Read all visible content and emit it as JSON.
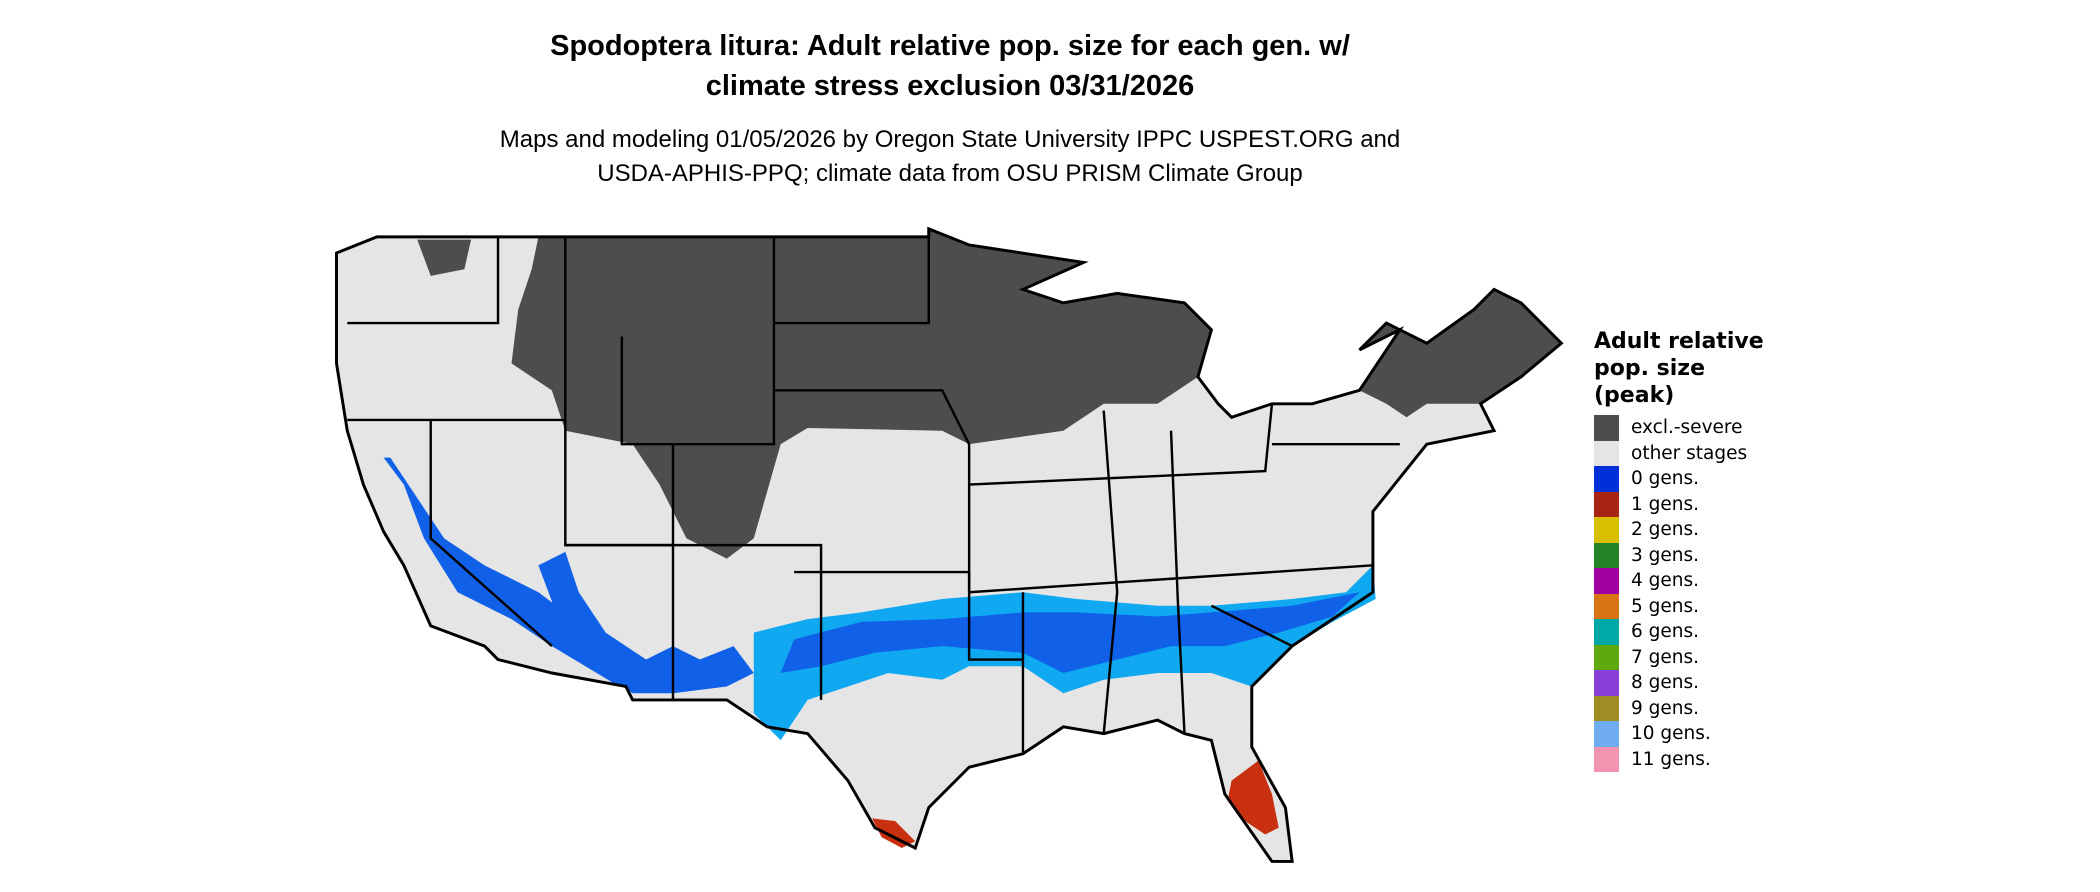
{
  "title": {
    "line1": "Spodoptera litura: Adult relative pop. size for each gen. w/",
    "line2": "climate stress exclusion 03/31/2026"
  },
  "subtitle": {
    "line1": "Maps and modeling 01/05/2026 by Oregon State University IPPC USPEST.ORG and",
    "line2": "USDA-APHIS-PPQ; climate data from OSU PRISM Climate Group"
  },
  "legend": {
    "title_lines": [
      "Adult relative",
      "pop. size",
      "(peak)"
    ],
    "items": [
      {
        "label": "excl.-severe",
        "color": "#4d4d4d"
      },
      {
        "label": "other stages",
        "color": "#e5e5e5"
      },
      {
        "label": "0 gens.",
        "color": "#0030d8"
      },
      {
        "label": "1 gens.",
        "color": "#a82414"
      },
      {
        "label": "2 gens.",
        "color": "#d8c000"
      },
      {
        "label": "3 gens.",
        "color": "#248428"
      },
      {
        "label": "4 gens.",
        "color": "#a000a0"
      },
      {
        "label": "5 gens.",
        "color": "#d87414"
      },
      {
        "label": "6 gens.",
        "color": "#00a8a8"
      },
      {
        "label": "7 gens.",
        "color": "#60a810"
      },
      {
        "label": "8 gens.",
        "color": "#8840d8"
      },
      {
        "label": "9 gens.",
        "color": "#a08c24"
      },
      {
        "label": "10 gens.",
        "color": "#70acf0"
      },
      {
        "label": "11 gens.",
        "color": "#f094b0"
      }
    ]
  },
  "map_colors": {
    "outline": "#000000",
    "light_blue": "#10a8f0",
    "mid_blue": "#1060e8",
    "red_orange": "#e04010"
  }
}
